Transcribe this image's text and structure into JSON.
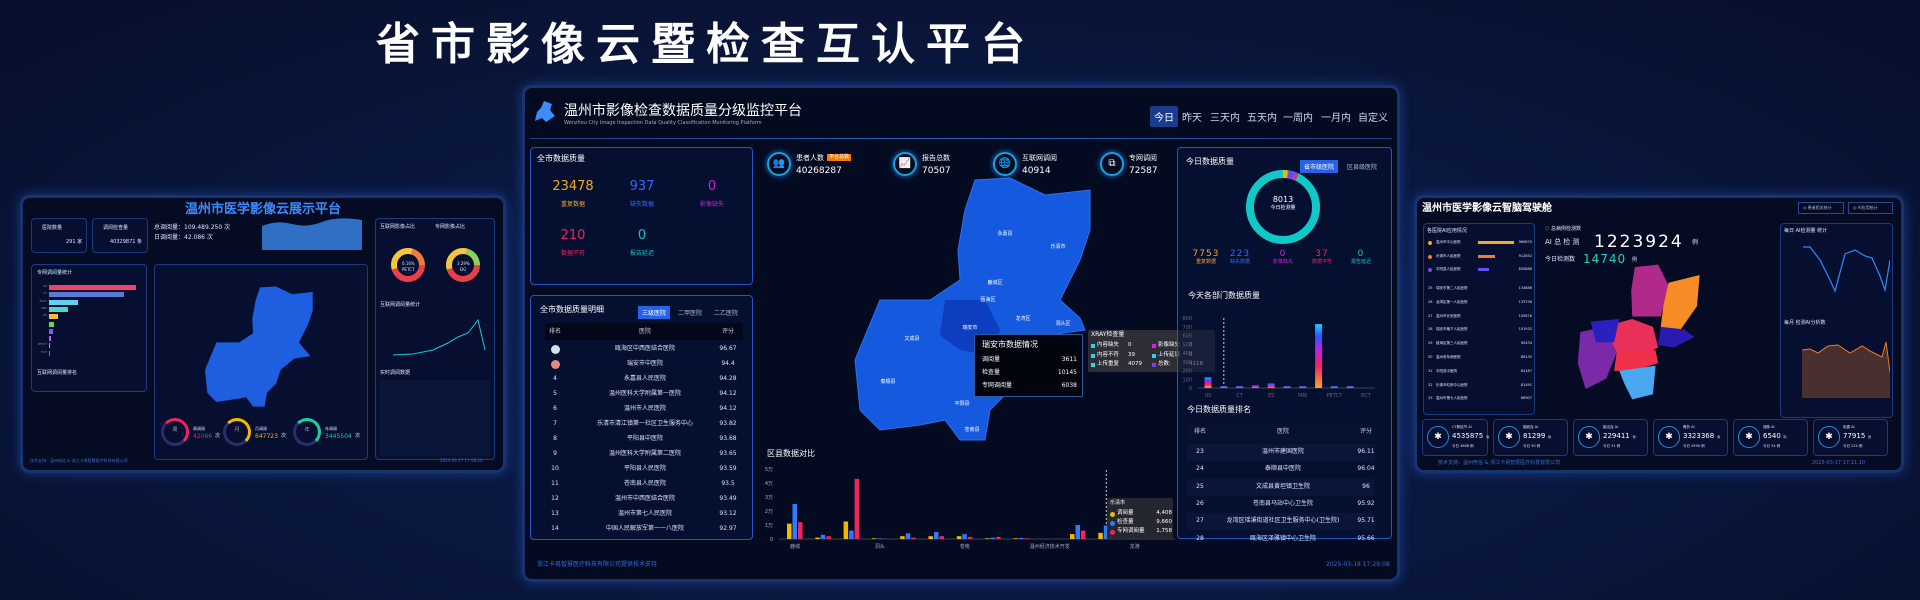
{
  "main_title": "省市影像云暨检查互认平台",
  "left_panel": {
    "title": "温州市医学影像云展示平台",
    "hospital_count": {
      "label": "医院数量",
      "value": "291 家"
    },
    "exam_count": {
      "label": "调阅检查量",
      "value": "40329871 条"
    },
    "total_views": "总调阅量：109.489.250 次",
    "daily_views": "日调阅量：42.086 次",
    "bar_title": "专网调阅量统计",
    "bar_items": [
      {
        "label": "US",
        "value": 100,
        "color": "#f0416a"
      },
      {
        "label": "CT",
        "value": 86,
        "color": "#5a78d6"
      },
      {
        "label": "XRAY",
        "value": 33,
        "color": "#5fd0f0"
      },
      {
        "label": "MRI",
        "value": 22,
        "color": "#52d6c4"
      },
      {
        "label": "ES",
        "value": 10,
        "color": "#f5b942"
      },
      {
        "label": "",
        "value": 6,
        "color": "#6cd35a"
      },
      {
        "label": "",
        "value": 5,
        "color": "#7a5cf0"
      },
      {
        "label": "",
        "value": 2,
        "color": "#b85cf0"
      },
      {
        "label": "PETCT",
        "value": 1.5,
        "color": "#f08a3a"
      },
      {
        "label": "ECT",
        "value": 1.5,
        "color": "#f0416a"
      }
    ],
    "rank_title": "互联网调阅量排名",
    "donut1": {
      "title": "互联网影像占比",
      "pct": "0.16%",
      "label": "PETCT"
    },
    "donut2": {
      "title": "专网影像占比",
      "pct": "3.29%",
      "label": "DG"
    },
    "line_title": "互联网调阅量统计",
    "realtime_title": "实时调阅数据",
    "rings": [
      {
        "char": "周",
        "label": "周调阅",
        "value": "42066",
        "unit": "次",
        "color": "#f0245e"
      },
      {
        "char": "月",
        "label": "月调阅",
        "value": "647723",
        "unit": "次",
        "color": "#f5b800"
      },
      {
        "char": "年",
        "label": "年调阅",
        "value": "3445504",
        "unit": "次",
        "color": "#18d0a0"
      }
    ],
    "footer": "技术支持：温州电信 & 浙江卡易智慧医疗科技有限公司",
    "time": "2025-03-17 17:08:20"
  },
  "center_panel": {
    "title": "温州市影像检查数据质量分级监控平台",
    "subtitle": "Wenzhou City Image Inspection Data Quality Classification Monitoring Platform",
    "tabs": [
      {
        "label": "今日",
        "active": true
      },
      {
        "label": "昨天"
      },
      {
        "label": "三天内"
      },
      {
        "label": "五天内"
      },
      {
        "label": "一周内"
      },
      {
        "label": "一月内"
      },
      {
        "label": "自定义"
      }
    ],
    "quality": {
      "title": "全市数据质量",
      "items": [
        {
          "value": "23478",
          "label": "重复数据",
          "color": "#f5a623"
        },
        {
          "value": "937",
          "label": "缺失数据",
          "color": "#2f6bff"
        },
        {
          "value": "0",
          "label": "影像缺失",
          "color": "#d020e0"
        },
        {
          "value": "210",
          "label": "数据不符",
          "color": "#f0245e"
        },
        {
          "value": "0",
          "label": "报告延迟",
          "color": "#12c8c8"
        }
      ]
    },
    "stats": [
      {
        "icon": "patients-icon",
        "label": "患者人数",
        "badge": "平台总数",
        "value": "40268287"
      },
      {
        "icon": "report-icon",
        "label": "报告总数",
        "value": "70507"
      },
      {
        "icon": "globe-icon",
        "label": "互联网调阅",
        "value": "40914"
      },
      {
        "icon": "network-icon",
        "label": "专网调阅",
        "value": "72587"
      }
    ],
    "detail": {
      "title": "全市数据质量明细",
      "filters": [
        {
          "label": "三级医院",
          "active": true
        },
        {
          "label": "二甲医院"
        },
        {
          "label": "二乙医院"
        }
      ],
      "headers": [
        "排名",
        "医院",
        "评分"
      ],
      "rows": [
        {
          "rank": "2",
          "medal": "silver",
          "name": "瓯海区中西医结合医院",
          "score": "96.67"
        },
        {
          "rank": "3",
          "medal": "bronze",
          "name": "瑞安市中医院",
          "score": "94.4"
        },
        {
          "rank": "4",
          "name": "永嘉县人民医院",
          "score": "94.28"
        },
        {
          "rank": "5",
          "name": "温州医科大学附属第一医院",
          "score": "94.12"
        },
        {
          "rank": "6",
          "name": "温州市人民医院",
          "score": "94.12"
        },
        {
          "rank": "7",
          "name": "乐清市清江镇第一社区卫生服务中心",
          "score": "93.82"
        },
        {
          "rank": "8",
          "name": "平阳县中医院",
          "score": "93.68"
        },
        {
          "rank": "9",
          "name": "温州医科大学附属第二医院",
          "score": "93.65"
        },
        {
          "rank": "10",
          "name": "平阳县人民医院",
          "score": "93.59"
        },
        {
          "rank": "11",
          "name": "苍南县人民医院",
          "score": "93.5"
        },
        {
          "rank": "12",
          "name": "温州市中西医结合医院",
          "score": "93.49"
        },
        {
          "rank": "13",
          "name": "温州市第七人民医院",
          "score": "93.12"
        },
        {
          "rank": "14",
          "name": "中国人民解放军第一一八医院",
          "score": "92.97"
        }
      ]
    },
    "map": {
      "regions": [
        "永嘉县",
        "乐清市",
        "鹿城区",
        "瓯海区",
        "龙湾区",
        "洞头区",
        "瑞安市",
        "文成县",
        "平阳县",
        "泰顺县",
        "苍南县"
      ],
      "tooltip": {
        "title": "瑞安市数据情况",
        "rows": [
          {
            "label": "调阅量",
            "value": "3611"
          },
          {
            "label": "检查量",
            "value": "10145"
          },
          {
            "label": "专网调阅量",
            "value": "6038"
          }
        ]
      }
    },
    "xray_tooltip": {
      "title": "XRAY检查量",
      "items": [
        {
          "label": "内容缺失",
          "value": "0",
          "color": "#2dd4e6"
        },
        {
          "label": "影像缺失",
          "value": "0",
          "color": "#e020e0"
        },
        {
          "label": "内容不符",
          "value": "39",
          "color": "#2dd4e6"
        },
        {
          "label": "上传延误",
          "value": "0",
          "color": "#2dd4e6"
        },
        {
          "label": "上传重复",
          "value": "4079",
          "color": "#2dd4e6"
        },
        {
          "label": "总数:",
          "value": "4118",
          "color": "#7a40f0"
        }
      ]
    },
    "today_quality": {
      "title": "今日数据质量",
      "filters": [
        {
          "label": "省市级医院",
          "active": true
        },
        {
          "label": "区县级医院"
        }
      ],
      "total": "8013",
      "total_label": "今日检测量",
      "items": [
        {
          "value": "7753",
          "label": "重复数据",
          "color": "#f5a623"
        },
        {
          "value": "223",
          "label": "缺失数据",
          "color": "#2f6bff"
        },
        {
          "value": "0",
          "label": "影像缺失",
          "color": "#d020e0"
        },
        {
          "value": "37",
          "label": "数据不符",
          "color": "#f0245e"
        },
        {
          "value": "0",
          "label": "报告延迟",
          "color": "#12c8c8"
        }
      ],
      "ring_color": "#10c8c8"
    },
    "ranking": {
      "title": "今日数据质量排名",
      "headers": [
        "排名",
        "医院",
        "评分"
      ],
      "rows": [
        {
          "rank": "23",
          "name": "温州市建国医院",
          "score": "96.11"
        },
        {
          "rank": "24",
          "name": "泰顺县中医院",
          "score": "96.04"
        },
        {
          "rank": "25",
          "name": "文成县黄坦镇卫生院",
          "score": "96"
        },
        {
          "rank": "26",
          "name": "苍南县马站中心卫生院",
          "score": "95.92"
        },
        {
          "rank": "27",
          "name": "龙湾区瑶溪街道社区卫生服务中心(卫生院)",
          "score": "95.71"
        },
        {
          "rank": "28",
          "name": "瓯海区泽雅镇中心卫生院",
          "score": "95.66"
        }
      ]
    },
    "footer": "浙江卡易智慧医疗科技有限公司提供技术支持",
    "time": "2025-03-18 17:29:08"
  },
  "chart_data": [
    {
      "type": "bar",
      "title": "区县数据对比",
      "categories": [
        "鹿城",
        "",
        "",
        "洞头",
        "",
        "",
        "苍南",
        "",
        "",
        "温州经济技术开发",
        "",
        "乐清市",
        "龙港"
      ],
      "tick_labels": [
        "鹿城",
        "洞头",
        "苍南",
        "温州经济技术开发",
        "龙港"
      ],
      "yticks": [
        "0",
        "1万",
        "2万",
        "3万",
        "4万",
        "5万"
      ],
      "ylim": [
        0,
        50000
      ],
      "series": [
        {
          "name": "调阅量",
          "color": "#f5b800",
          "values": [
            11000,
            1000,
            12500,
            500,
            2000,
            2000,
            2000,
            500,
            500,
            0,
            3500,
            4408,
            500
          ]
        },
        {
          "name": "检查量",
          "color": "#2f7bff",
          "values": [
            25000,
            3000,
            6000,
            500,
            4000,
            5000,
            3500,
            1000,
            800,
            0,
            10000,
            9660,
            500
          ]
        },
        {
          "name": "专网调阅量",
          "color": "#f0245e",
          "values": [
            12000,
            2000,
            43000,
            200,
            1000,
            2000,
            1500,
            1500,
            500,
            0,
            6000,
            1758,
            500
          ]
        }
      ],
      "tooltip": {
        "title": "乐清市"
      }
    },
    {
      "type": "bar",
      "title": "今天各部门数据质量",
      "categories": [
        "US",
        "XRAY",
        "CT",
        "",
        "ES",
        "",
        "MRI",
        "",
        "PETCT",
        "",
        "ECT"
      ],
      "tick_labels": [
        "US",
        "CT",
        "ES",
        "MRI",
        "PETCT",
        "ECT"
      ],
      "yticks": [
        "0",
        "100",
        "200",
        "300",
        "400",
        "500",
        "600",
        "700",
        "800"
      ],
      "ylim": [
        0,
        800
      ],
      "values": [
        120,
        20,
        20,
        30,
        50,
        20,
        20,
        730,
        20,
        20,
        0
      ]
    }
  ],
  "right_panel": {
    "title": "温州市医学影像云智脑驾驶舱",
    "buttons": [
      {
        "label": "患者相关统计",
        "icon": "patient-icon"
      },
      {
        "label": "AI应用统计",
        "icon": "ai-icon"
      }
    ],
    "ai_list_title": "各医院AI应用情况",
    "ai_top": [
      {
        "name": "温州市中心医院",
        "value": "960670",
        "color": "#f5a623"
      },
      {
        "name": "乐清市人民医院",
        "value": "912852",
        "color": "#f07a3a"
      },
      {
        "name": "平阳县人民医院",
        "value": "830888",
        "color": "#6a4cf0"
      }
    ],
    "ai_list": [
      {
        "rank": "25",
        "name": "瑞安市第二人民医院",
        "value": "134886"
      },
      {
        "rank": "26",
        "name": "龙湾区第一人民医院",
        "value": "133758"
      },
      {
        "rank": "27",
        "name": "温州市长安医院",
        "value": "105676"
      },
      {
        "rank": "28",
        "name": "瑞安市塘下人民医院",
        "value": "101932"
      },
      {
        "rank": "29",
        "name": "瓯海区第三人民医院",
        "value": "90434"
      },
      {
        "rank": "30",
        "name": "温州老年病医院",
        "value": "86135"
      },
      {
        "rank": "31",
        "name": "平阳县中医院",
        "value": "84187"
      },
      {
        "rank": "32",
        "name": "乐清市虹桥中心医院",
        "value": "81491"
      },
      {
        "rank": "33",
        "name": "温州市第七人民医院",
        "value": "68907"
      }
    ],
    "total_label": "总病例检测数",
    "ai_total_label": "AI 总 检 测",
    "ai_total": "1223924",
    "ai_total_unit": "例",
    "today_label": "今日检测数",
    "today_value": "14740",
    "today_unit": "例",
    "daily_title": "每日 AI检测量 统计",
    "monthly_title": "每月 检测AI分析数",
    "cards": [
      {
        "icon": "lungs-icon",
        "label": "CT肺结节 AI",
        "value": "4535875",
        "today": "今日 4608 例"
      },
      {
        "icon": "brain-icon",
        "label": "脑缺血 AI",
        "value": "81299",
        "today": "今日 30 例"
      },
      {
        "icon": "brain-bleed-icon",
        "label": "脑出血 AI",
        "value": "229411",
        "today": "今日 31 例"
      },
      {
        "icon": "bone-icon",
        "label": "骨折 AI",
        "value": "3323368",
        "today": "今日 4590 例"
      },
      {
        "icon": "heart-icon",
        "label": "冠脉 AI",
        "value": "6540",
        "today": "今日 34 例"
      },
      {
        "icon": "breast-icon",
        "label": "乳腺 AI",
        "value": "77915",
        "today": "今日 222 例"
      }
    ],
    "card_unit": "例",
    "footer": "技术支持：温州电信 & 浙江卡易智慧医疗科技有限公司",
    "time": "2025-03-17 17:11:10"
  }
}
